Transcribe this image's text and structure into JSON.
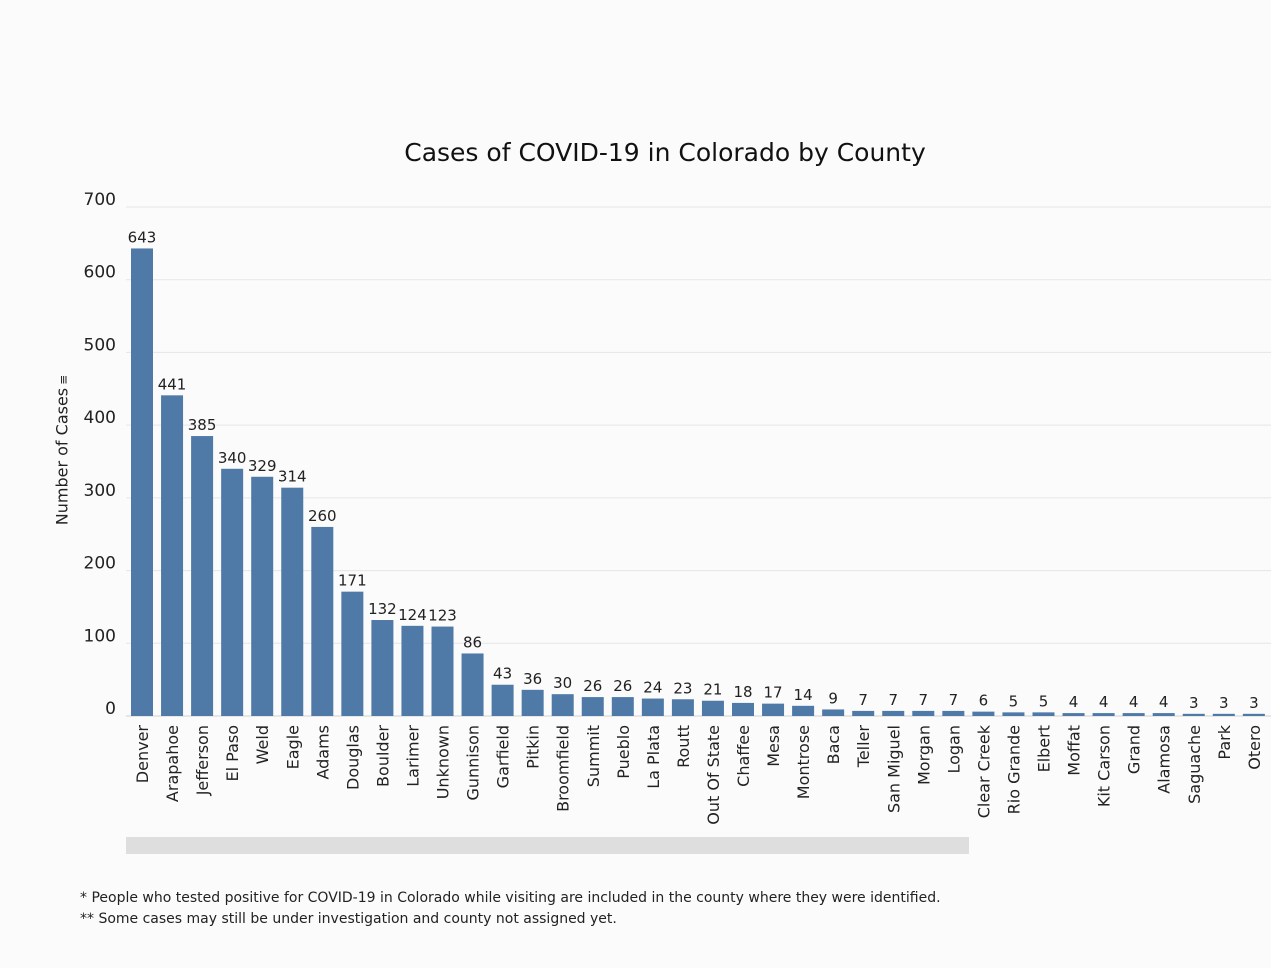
{
  "chart_data": {
    "type": "bar",
    "title": "Cases of COVID-19 in Colorado by County",
    "ylabel": "Number of Cases",
    "xlabel": "",
    "ylim": [
      0,
      700
    ],
    "yticks": [
      0,
      100,
      200,
      300,
      400,
      500,
      600,
      700
    ],
    "grid": true,
    "bar_color": "#4f79a6",
    "categories": [
      "Denver",
      "Arapahoe",
      "Jefferson",
      "El Paso",
      "Weld",
      "Eagle",
      "Adams",
      "Douglas",
      "Boulder",
      "Larimer",
      "Unknown",
      "Gunnison",
      "Garfield",
      "Pitkin",
      "Broomfield",
      "Summit",
      "Pueblo",
      "La Plata",
      "Routt",
      "Out Of State",
      "Chaffee",
      "Mesa",
      "Montrose",
      "Baca",
      "Teller",
      "San Miguel",
      "Morgan",
      "Logan",
      "Clear Creek",
      "Rio Grande",
      "Elbert",
      "Moffat",
      "Kit Carson",
      "Grand",
      "Alamosa",
      "Saguache",
      "Park",
      "Otero"
    ],
    "values": [
      643,
      441,
      385,
      340,
      329,
      314,
      260,
      171,
      132,
      124,
      123,
      86,
      43,
      36,
      30,
      26,
      26,
      24,
      23,
      21,
      18,
      17,
      14,
      9,
      7,
      7,
      7,
      7,
      6,
      5,
      5,
      4,
      4,
      4,
      4,
      3,
      3,
      3
    ]
  },
  "menu_icon": "hamburger-menu-icon",
  "notes": [
    "* People who tested positive for COVID-19 in Colorado while visiting are included in the county where they were identified.",
    "** Some cases may still be under investigation and county not assigned yet."
  ]
}
